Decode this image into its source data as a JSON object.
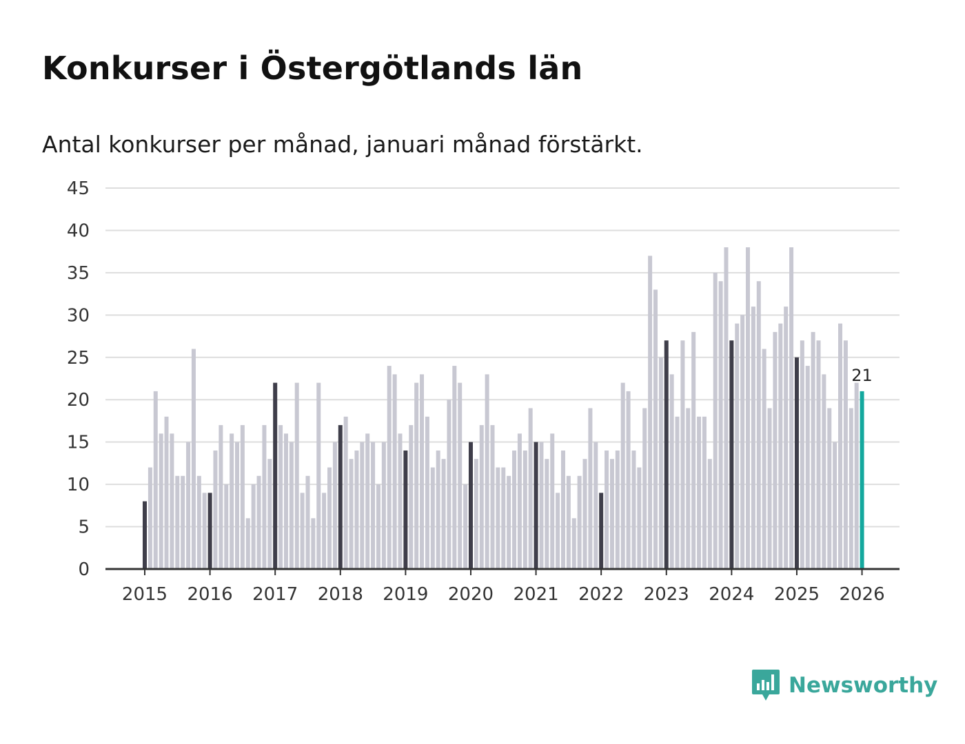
{
  "header": {
    "title": "Konkurser i Östergötlands län",
    "subtitle": "Antal konkurser per månad, januari månad förstärkt."
  },
  "brand": {
    "name": "Newsworthy",
    "icon": "newsworthy-logo-icon",
    "color": "#3aa79b"
  },
  "colors": {
    "bar_default": "#c8c8d2",
    "bar_january": "#3f3e4a",
    "bar_latest": "#14a89e",
    "grid": "#dddddd",
    "axis": "#333333"
  },
  "chart_data": {
    "type": "bar",
    "title": "Konkurser i Östergötlands län",
    "subtitle": "Antal konkurser per månad, januari månad förstärkt.",
    "xlabel": "",
    "ylabel": "",
    "ylim": [
      0,
      45
    ],
    "yticks": [
      0,
      5,
      10,
      15,
      20,
      25,
      30,
      35,
      40,
      45
    ],
    "grid": true,
    "start_month": "2015-01",
    "xtick_labels": [
      "2015",
      "2016",
      "2017",
      "2018",
      "2019",
      "2020",
      "2021",
      "2022",
      "2023",
      "2024",
      "2025",
      "2026"
    ],
    "highlight_rule": "january",
    "highlight_last": true,
    "last_value_label": "21",
    "values": [
      8,
      12,
      21,
      16,
      18,
      16,
      11,
      11,
      15,
      26,
      11,
      9,
      9,
      14,
      17,
      10,
      16,
      15,
      17,
      6,
      10,
      11,
      17,
      13,
      22,
      17,
      16,
      15,
      22,
      9,
      11,
      6,
      22,
      9,
      12,
      15,
      17,
      18,
      13,
      14,
      15,
      16,
      15,
      10,
      15,
      24,
      23,
      16,
      14,
      17,
      22,
      23,
      18,
      12,
      14,
      13,
      20,
      24,
      22,
      10,
      15,
      13,
      17,
      23,
      17,
      12,
      12,
      11,
      14,
      16,
      14,
      19,
      15,
      15,
      13,
      16,
      9,
      14,
      11,
      6,
      11,
      13,
      19,
      15,
      9,
      14,
      13,
      14,
      22,
      21,
      14,
      12,
      19,
      37,
      33,
      25,
      27,
      23,
      18,
      27,
      19,
      28,
      18,
      18,
      13,
      35,
      34,
      38,
      27,
      29,
      30,
      38,
      31,
      34,
      26,
      19,
      28,
      29,
      31,
      38,
      25,
      27,
      24,
      28,
      27,
      23,
      19,
      15,
      29,
      27,
      19,
      22,
      21
    ]
  }
}
